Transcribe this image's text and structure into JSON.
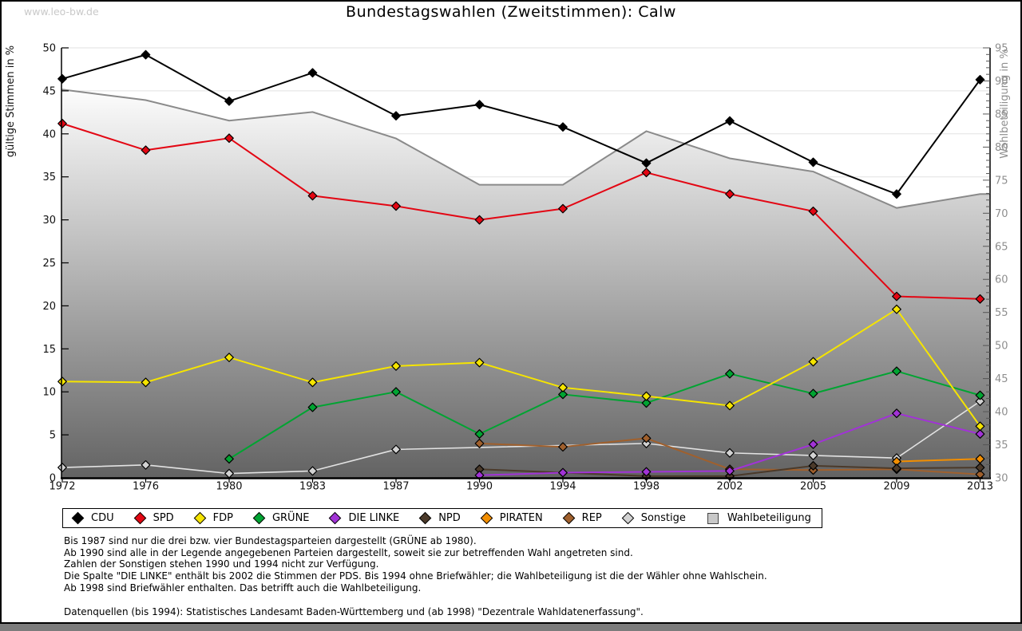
{
  "watermark": "www.leo-bw.de",
  "title": "Bundestagswahlen (Zweitstimmen): Calw",
  "chart_data": {
    "type": "line",
    "title": "Bundestagswahlen (Zweitstimmen): Calw",
    "x": [
      1972,
      1976,
      1980,
      1983,
      1987,
      1990,
      1994,
      1998,
      2002,
      2005,
      2009,
      2013
    ],
    "x_labels": [
      "1972",
      "1976",
      "1980",
      "1983",
      "1987",
      "1990",
      "1994",
      "1998",
      "2002",
      "2005",
      "2009",
      "2013"
    ],
    "left_axis": {
      "label": "gültige Stimmen in %",
      "min": 0,
      "max": 50,
      "step": 5
    },
    "right_axis": {
      "label": "Wahlbeteiligung in %",
      "min": 30,
      "max": 95,
      "step": 5,
      "minor_step": 1
    },
    "grid": true,
    "legend_position": "bottom",
    "series": [
      {
        "name": "CDU",
        "color": "#000000",
        "values": [
          46.4,
          49.2,
          43.8,
          47.1,
          42.1,
          43.4,
          40.8,
          36.6,
          41.5,
          36.7,
          33.0,
          46.3
        ]
      },
      {
        "name": "SPD",
        "color": "#e30613",
        "values": [
          41.2,
          38.1,
          39.5,
          32.8,
          31.6,
          30.0,
          31.3,
          35.5,
          33.0,
          31.0,
          21.1,
          20.8
        ]
      },
      {
        "name": "FDP",
        "color": "#f5e400",
        "values": [
          11.2,
          11.1,
          14.0,
          11.1,
          13.0,
          13.4,
          10.5,
          9.5,
          8.4,
          13.5,
          19.6,
          6.0
        ]
      },
      {
        "name": "GRÜNE",
        "color": "#00a432",
        "values": [
          null,
          null,
          2.2,
          8.2,
          10.0,
          5.1,
          9.7,
          8.7,
          12.1,
          9.8,
          12.4,
          9.6
        ]
      },
      {
        "name": "DIE LINKE",
        "color": "#a133d6",
        "values": [
          null,
          null,
          null,
          null,
          null,
          0.3,
          0.6,
          0.7,
          0.8,
          3.9,
          7.5,
          5.1
        ]
      },
      {
        "name": "NPD",
        "color": "#4b3a2a",
        "values": [
          null,
          null,
          null,
          null,
          null,
          1.0,
          null,
          0.2,
          0.2,
          1.4,
          1.1,
          1.2
        ]
      },
      {
        "name": "PIRATEN",
        "color": "#f28e00",
        "values": [
          null,
          null,
          null,
          null,
          null,
          null,
          null,
          null,
          null,
          null,
          1.9,
          2.2
        ]
      },
      {
        "name": "REP",
        "color": "#a0602d",
        "values": [
          null,
          null,
          null,
          null,
          null,
          4.0,
          3.6,
          4.6,
          1.0,
          0.9,
          1.0,
          0.4
        ]
      },
      {
        "name": "Sonstige",
        "color": "#e2e2e2",
        "marker_color": "#d2d2d2",
        "values": [
          1.2,
          1.5,
          0.5,
          0.8,
          3.3,
          null,
          null,
          4.0,
          2.9,
          2.6,
          2.3,
          8.9
        ]
      }
    ],
    "turnout": {
      "name": "Wahlbeteiligung",
      "axis": "right",
      "style": "area",
      "edge_color": "#8a8a8a",
      "fill_top": "#ffffff",
      "fill_bottom": "#636363",
      "values": [
        88.7,
        87.1,
        84.0,
        85.3,
        81.3,
        74.3,
        74.3,
        82.4,
        78.3,
        76.3,
        70.8,
        72.9
      ]
    }
  },
  "footnotes": {
    "lines": [
      "Bis 1987 sind nur die drei bzw. vier Bundestagsparteien dargestellt (GRÜNE ab 1980).",
      "Ab 1990 sind alle in der Legende angegebenen Parteien dargestellt, soweit sie zur betreffenden Wahl angetreten sind.",
      "Zahlen der Sonstigen stehen 1990 und 1994 nicht zur Verfügung.",
      "Die Spalte \"DIE LINKE\" enthält bis 2002 die Stimmen der PDS. Bis 1994 ohne Briefwähler; die Wahlbeteiligung ist die der Wähler ohne Wahlschein.",
      "Ab 1998 sind Briefwähler enthalten. Das betrifft auch die Wahlbeteiligung."
    ],
    "source": "Datenquellen (bis 1994): Statistisches Landesamt Baden-Württemberg und (ab 1998) \"Dezentrale Wahldatenerfassung\"."
  }
}
